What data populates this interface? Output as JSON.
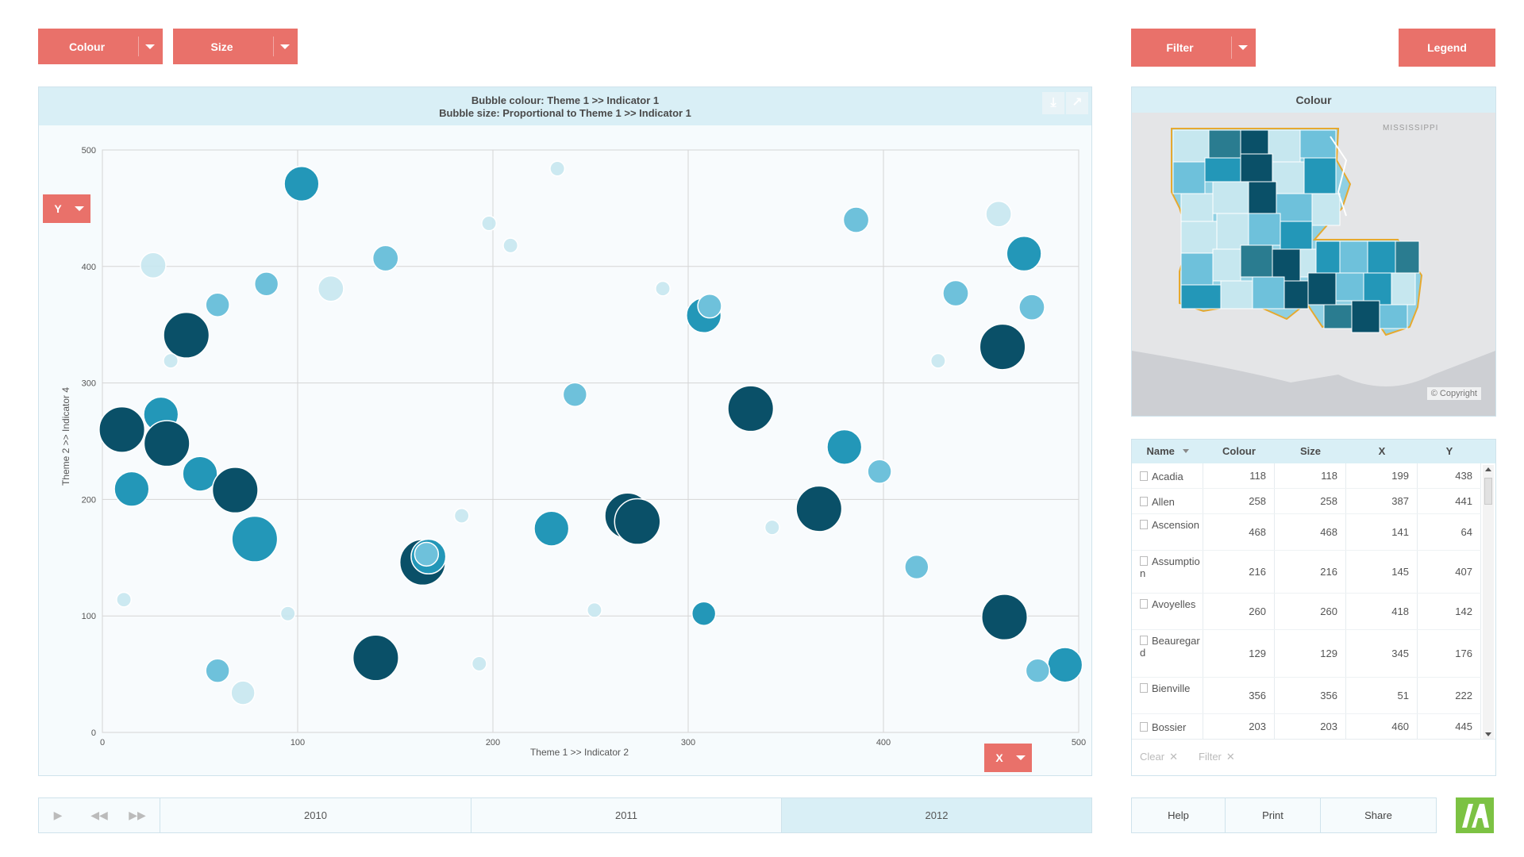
{
  "toolbar": {
    "colour_label": "Colour",
    "size_label": "Size",
    "filter_label": "Filter",
    "legend_label": "Legend",
    "accent_color": "#e9716a"
  },
  "chart": {
    "title_line1": "Bubble colour: Theme 1 >>  Indicator 1",
    "title_line2": "Bubble size: Proportional to Theme 1 >>  Indicator 1",
    "y_button": "Y",
    "x_button": "X",
    "download_icon": "download-icon",
    "expand_icon": "expand-icon"
  },
  "chart_data": {
    "type": "scatter",
    "xlabel": "Theme 1 >>  Indicator 2",
    "ylabel": "Theme 2 >>  Indicator 4",
    "xlim": [
      0,
      500
    ],
    "ylim": [
      0,
      500
    ],
    "xticks": [
      0,
      100,
      200,
      300,
      400,
      500
    ],
    "yticks": [
      0,
      100,
      200,
      300,
      400,
      500
    ],
    "grid": true,
    "color_scale": [
      "#c6e7ef",
      "#6ec1db",
      "#2397b8",
      "#0a5068"
    ],
    "points": [
      {
        "x": 102,
        "y": 471,
        "size": 19,
        "c": 2
      },
      {
        "x": 233,
        "y": 484,
        "size": 8,
        "c": 0
      },
      {
        "x": 198,
        "y": 437,
        "size": 8,
        "c": 0
      },
      {
        "x": 209,
        "y": 418,
        "size": 8,
        "c": 0
      },
      {
        "x": 26,
        "y": 401,
        "size": 14,
        "c": 0
      },
      {
        "x": 145,
        "y": 407,
        "size": 14,
        "c": 1
      },
      {
        "x": 84,
        "y": 385,
        "size": 13,
        "c": 1
      },
      {
        "x": 117,
        "y": 381,
        "size": 14,
        "c": 0
      },
      {
        "x": 59,
        "y": 367,
        "size": 13,
        "c": 1
      },
      {
        "x": 43,
        "y": 341,
        "size": 25,
        "c": 3
      },
      {
        "x": 35,
        "y": 319,
        "size": 8,
        "c": 0
      },
      {
        "x": 287,
        "y": 381,
        "size": 8,
        "c": 0
      },
      {
        "x": 308,
        "y": 358,
        "size": 19,
        "c": 2
      },
      {
        "x": 311,
        "y": 366,
        "size": 13,
        "c": 1
      },
      {
        "x": 386,
        "y": 440,
        "size": 14,
        "c": 1
      },
      {
        "x": 459,
        "y": 445,
        "size": 14,
        "c": 0
      },
      {
        "x": 472,
        "y": 411,
        "size": 19,
        "c": 2
      },
      {
        "x": 437,
        "y": 377,
        "size": 14,
        "c": 1
      },
      {
        "x": 476,
        "y": 365,
        "size": 14,
        "c": 1
      },
      {
        "x": 461,
        "y": 331,
        "size": 25,
        "c": 3
      },
      {
        "x": 428,
        "y": 319,
        "size": 8,
        "c": 0
      },
      {
        "x": 10,
        "y": 260,
        "size": 25,
        "c": 3
      },
      {
        "x": 30,
        "y": 273,
        "size": 19,
        "c": 2
      },
      {
        "x": 33,
        "y": 248,
        "size": 25,
        "c": 3
      },
      {
        "x": 15,
        "y": 209,
        "size": 19,
        "c": 2
      },
      {
        "x": 50,
        "y": 222,
        "size": 19,
        "c": 2
      },
      {
        "x": 68,
        "y": 208,
        "size": 25,
        "c": 3
      },
      {
        "x": 78,
        "y": 166,
        "size": 25,
        "c": 2
      },
      {
        "x": 242,
        "y": 290,
        "size": 13,
        "c": 1
      },
      {
        "x": 332,
        "y": 278,
        "size": 25,
        "c": 3
      },
      {
        "x": 380,
        "y": 245,
        "size": 19,
        "c": 2
      },
      {
        "x": 398,
        "y": 224,
        "size": 13,
        "c": 1
      },
      {
        "x": 367,
        "y": 192,
        "size": 25,
        "c": 3
      },
      {
        "x": 343,
        "y": 176,
        "size": 8,
        "c": 0
      },
      {
        "x": 269,
        "y": 186,
        "size": 25,
        "c": 3
      },
      {
        "x": 274,
        "y": 181,
        "size": 25,
        "c": 3
      },
      {
        "x": 230,
        "y": 175,
        "size": 19,
        "c": 2
      },
      {
        "x": 184,
        "y": 186,
        "size": 8,
        "c": 0
      },
      {
        "x": 164,
        "y": 146,
        "size": 25,
        "c": 3
      },
      {
        "x": 167,
        "y": 151,
        "size": 19,
        "c": 2
      },
      {
        "x": 166,
        "y": 153,
        "size": 13,
        "c": 1
      },
      {
        "x": 417,
        "y": 142,
        "size": 13,
        "c": 1
      },
      {
        "x": 462,
        "y": 99,
        "size": 25,
        "c": 3
      },
      {
        "x": 493,
        "y": 58,
        "size": 19,
        "c": 2
      },
      {
        "x": 479,
        "y": 53,
        "size": 13,
        "c": 1
      },
      {
        "x": 308,
        "y": 102,
        "size": 13,
        "c": 2
      },
      {
        "x": 252,
        "y": 105,
        "size": 8,
        "c": 0
      },
      {
        "x": 193,
        "y": 59,
        "size": 8,
        "c": 0
      },
      {
        "x": 140,
        "y": 64,
        "size": 25,
        "c": 3
      },
      {
        "x": 59,
        "y": 53,
        "size": 13,
        "c": 1
      },
      {
        "x": 72,
        "y": 34,
        "size": 13,
        "c": 0
      },
      {
        "x": 95,
        "y": 102,
        "size": 8,
        "c": 0
      },
      {
        "x": 11,
        "y": 114,
        "size": 8,
        "c": 0
      }
    ]
  },
  "map": {
    "title": "Colour",
    "state_label": "MISSISSIPPI",
    "copyright": "© Copyright"
  },
  "table": {
    "columns": [
      "Name",
      "Colour",
      "Size",
      "X",
      "Y"
    ],
    "rows": [
      {
        "name": "Acadia",
        "colour": "118",
        "size": "118",
        "x": "199",
        "y": "438"
      },
      {
        "name": "Allen",
        "colour": "258",
        "size": "258",
        "x": "387",
        "y": "441"
      },
      {
        "name": "Ascension",
        "colour": "468",
        "size": "468",
        "x": "141",
        "y": "64"
      },
      {
        "name": "Assumption",
        "colour": "216",
        "size": "216",
        "x": "145",
        "y": "407"
      },
      {
        "name": "Avoyelles",
        "colour": "260",
        "size": "260",
        "x": "418",
        "y": "142"
      },
      {
        "name": "Beauregard",
        "colour": "129",
        "size": "129",
        "x": "345",
        "y": "176"
      },
      {
        "name": "Bienville",
        "colour": "356",
        "size": "356",
        "x": "51",
        "y": "222"
      },
      {
        "name": "Bossier",
        "colour": "203",
        "size": "203",
        "x": "460",
        "y": "445"
      }
    ],
    "clear_label": "Clear",
    "filter_label": "Filter"
  },
  "timeline": {
    "play_icon": "play-icon",
    "rewind_icon": "rewind-icon",
    "forward_icon": "fast-forward-icon",
    "years": [
      "2010",
      "2011",
      "2012"
    ],
    "active_year": "2012"
  },
  "bottom": {
    "help_label": "Help",
    "print_label": "Print",
    "share_label": "Share"
  }
}
